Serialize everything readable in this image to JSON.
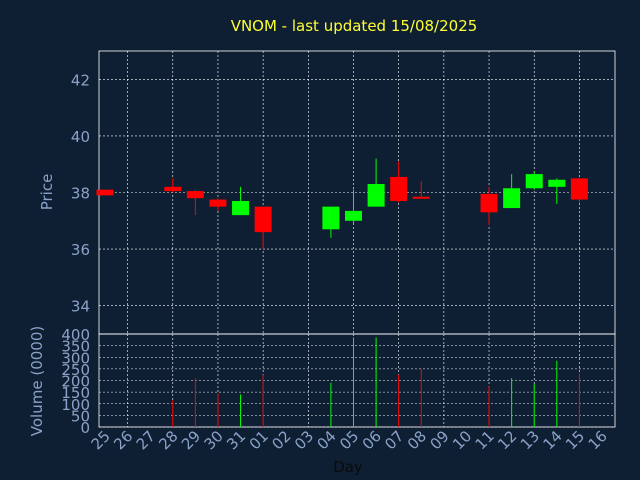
{
  "title": "VNOM - last updated 15/08/2025",
  "colors": {
    "background": "#0f1f33",
    "title": "#ffff33",
    "axis_text": "#8aa2c8",
    "grid": "#ffffff",
    "up": "#00ff00",
    "down": "#ff0000"
  },
  "chart_data": [
    {
      "type": "candlestick",
      "ylabel": "Price",
      "ylim": [
        33,
        43
      ],
      "y_ticks": [
        "34",
        "36",
        "38",
        "40",
        "42"
      ],
      "grid": true,
      "x": [
        "25",
        "26",
        "27",
        "28",
        "29",
        "30",
        "31",
        "01",
        "02",
        "03",
        "04",
        "05",
        "06",
        "07",
        "08",
        "09",
        "10",
        "11",
        "12",
        "13",
        "14",
        "15",
        "16"
      ],
      "candles": [
        {
          "x": "25",
          "open": 38.1,
          "high": 38.1,
          "low": 37.9,
          "close": 37.9
        },
        {
          "x": "28",
          "open": 38.2,
          "high": 38.5,
          "low": 38.0,
          "close": 38.05
        },
        {
          "x": "29",
          "open": 38.05,
          "high": 38.1,
          "low": 37.2,
          "close": 37.8
        },
        {
          "x": "30",
          "open": 37.75,
          "high": 37.8,
          "low": 37.35,
          "close": 37.5
        },
        {
          "x": "31",
          "open": 37.2,
          "high": 38.2,
          "low": 37.2,
          "close": 37.7
        },
        {
          "x": "01",
          "open": 37.5,
          "high": 37.5,
          "low": 36.0,
          "close": 36.6
        },
        {
          "x": "04",
          "open": 36.7,
          "high": 37.5,
          "low": 36.4,
          "close": 37.5
        },
        {
          "x": "05",
          "open": 37.0,
          "high": 38.1,
          "low": 36.9,
          "close": 37.35
        },
        {
          "x": "06",
          "open": 37.5,
          "high": 39.2,
          "low": 37.5,
          "close": 38.3
        },
        {
          "x": "07",
          "open": 38.55,
          "high": 39.1,
          "low": 37.65,
          "close": 37.7
        },
        {
          "x": "08",
          "open": 37.85,
          "high": 38.4,
          "low": 37.8,
          "close": 37.8
        },
        {
          "x": "11",
          "open": 37.95,
          "high": 38.2,
          "low": 36.85,
          "close": 37.3
        },
        {
          "x": "12",
          "open": 37.45,
          "high": 38.65,
          "low": 37.45,
          "close": 38.15
        },
        {
          "x": "13",
          "open": 38.15,
          "high": 38.75,
          "low": 38.1,
          "close": 38.65
        },
        {
          "x": "14",
          "open": 38.2,
          "high": 38.5,
          "low": 37.6,
          "close": 38.45
        },
        {
          "x": "15",
          "open": 38.5,
          "high": 38.5,
          "low": 37.65,
          "close": 37.75
        }
      ]
    },
    {
      "type": "bar",
      "ylabel": "Volume (0000)",
      "xlabel": "Day",
      "ylim": [
        0,
        400
      ],
      "y_ticks": [
        "0",
        "50",
        "100",
        "150",
        "200",
        "250",
        "300",
        "350",
        "400"
      ],
      "grid": true,
      "categories": [
        "25",
        "26",
        "27",
        "28",
        "29",
        "30",
        "31",
        "01",
        "02",
        "03",
        "04",
        "05",
        "06",
        "07",
        "08",
        "09",
        "10",
        "11",
        "12",
        "13",
        "14",
        "15",
        "16"
      ],
      "volumes": [
        {
          "x": "28",
          "value": 115,
          "direction": "down"
        },
        {
          "x": "29",
          "value": 210,
          "direction": "down"
        },
        {
          "x": "30",
          "value": 145,
          "direction": "down"
        },
        {
          "x": "31",
          "value": 140,
          "direction": "up"
        },
        {
          "x": "01",
          "value": 225,
          "direction": "down"
        },
        {
          "x": "04",
          "value": 190,
          "direction": "up"
        },
        {
          "x": "05",
          "value": 385,
          "direction": "up"
        },
        {
          "x": "06",
          "value": 385,
          "direction": "up"
        },
        {
          "x": "07",
          "value": 225,
          "direction": "down"
        },
        {
          "x": "08",
          "value": 250,
          "direction": "down"
        },
        {
          "x": "11",
          "value": 175,
          "direction": "down"
        },
        {
          "x": "12",
          "value": 210,
          "direction": "up"
        },
        {
          "x": "13",
          "value": 185,
          "direction": "up"
        },
        {
          "x": "14",
          "value": 285,
          "direction": "up"
        },
        {
          "x": "15",
          "value": 230,
          "direction": "down"
        }
      ]
    }
  ]
}
